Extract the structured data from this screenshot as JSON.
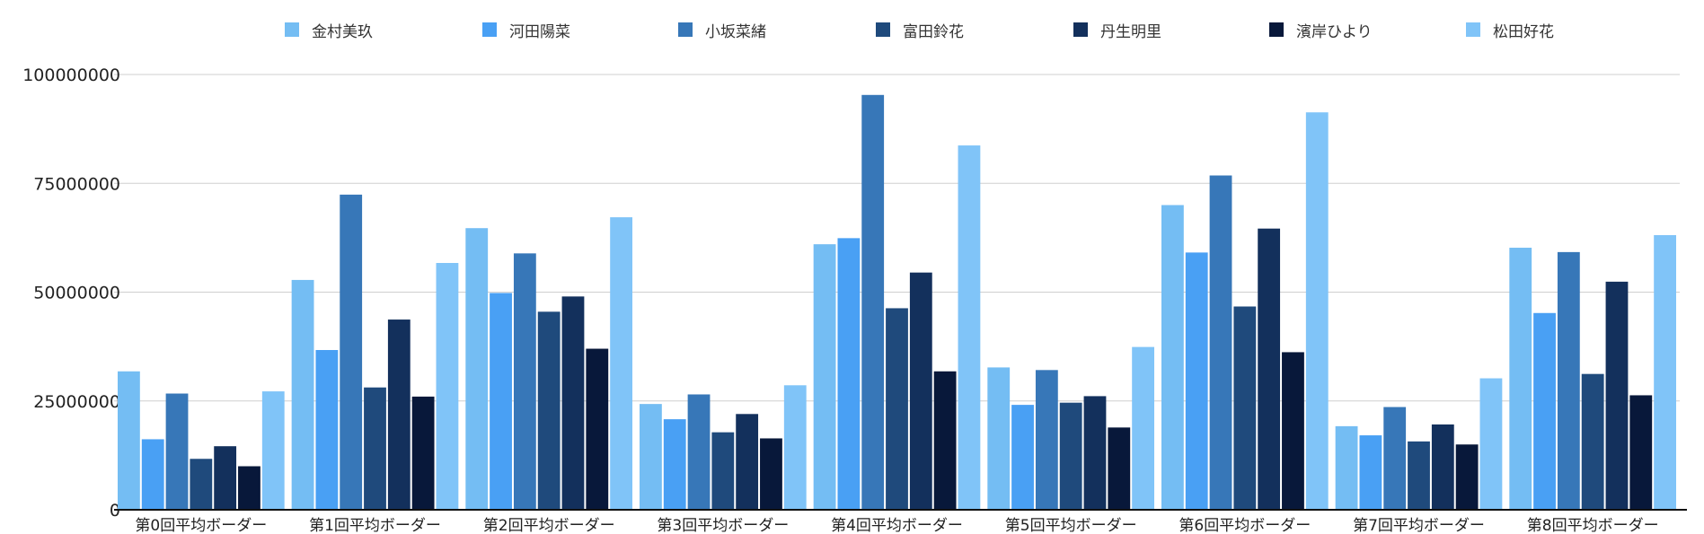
{
  "chart_data": {
    "type": "bar",
    "title": "",
    "xlabel": "",
    "ylabel": "",
    "ylim": [
      0,
      100000000
    ],
    "yticks": [
      0,
      25000000,
      50000000,
      75000000,
      100000000
    ],
    "grid": true,
    "legend_position": "top",
    "categories": [
      "第0回平均ボーダー",
      "第1回平均ボーダー",
      "第2回平均ボーダー",
      "第3回平均ボーダー",
      "第4回平均ボーダー",
      "第5回平均ボーダー",
      "第6回平均ボーダー",
      "第7回平均ボーダー",
      "第8回平均ボーダー"
    ],
    "series": [
      {
        "name": "金村美玖",
        "color": "#74bdf3",
        "values": [
          31800000,
          52800000,
          64700000,
          24300000,
          61000000,
          32700000,
          70000000,
          19200000,
          60200000
        ]
      },
      {
        "name": "河田陽菜",
        "color": "#49a0f4",
        "values": [
          16200000,
          36700000,
          49800000,
          20800000,
          62400000,
          24100000,
          59100000,
          17100000,
          45200000
        ]
      },
      {
        "name": "小坂菜緒",
        "color": "#3777b8",
        "values": [
          26700000,
          72400000,
          58900000,
          26500000,
          95300000,
          32100000,
          76800000,
          23600000,
          59200000
        ]
      },
      {
        "name": "富田鈴花",
        "color": "#1f4a7c",
        "values": [
          11700000,
          28100000,
          45500000,
          17800000,
          46300000,
          24600000,
          46700000,
          15700000,
          31200000
        ]
      },
      {
        "name": "丹生明里",
        "color": "#13305c",
        "values": [
          14600000,
          43700000,
          49000000,
          22000000,
          54500000,
          26100000,
          64600000,
          19600000,
          52400000
        ]
      },
      {
        "name": "濱岸ひより",
        "color": "#08183a",
        "values": [
          10000000,
          26000000,
          37000000,
          16400000,
          31800000,
          18900000,
          36200000,
          15000000,
          26300000
        ]
      },
      {
        "name": "松田好花",
        "color": "#80c4f8",
        "values": [
          27200000,
          56700000,
          67200000,
          28600000,
          83700000,
          37400000,
          91300000,
          30200000,
          63100000
        ]
      }
    ]
  }
}
